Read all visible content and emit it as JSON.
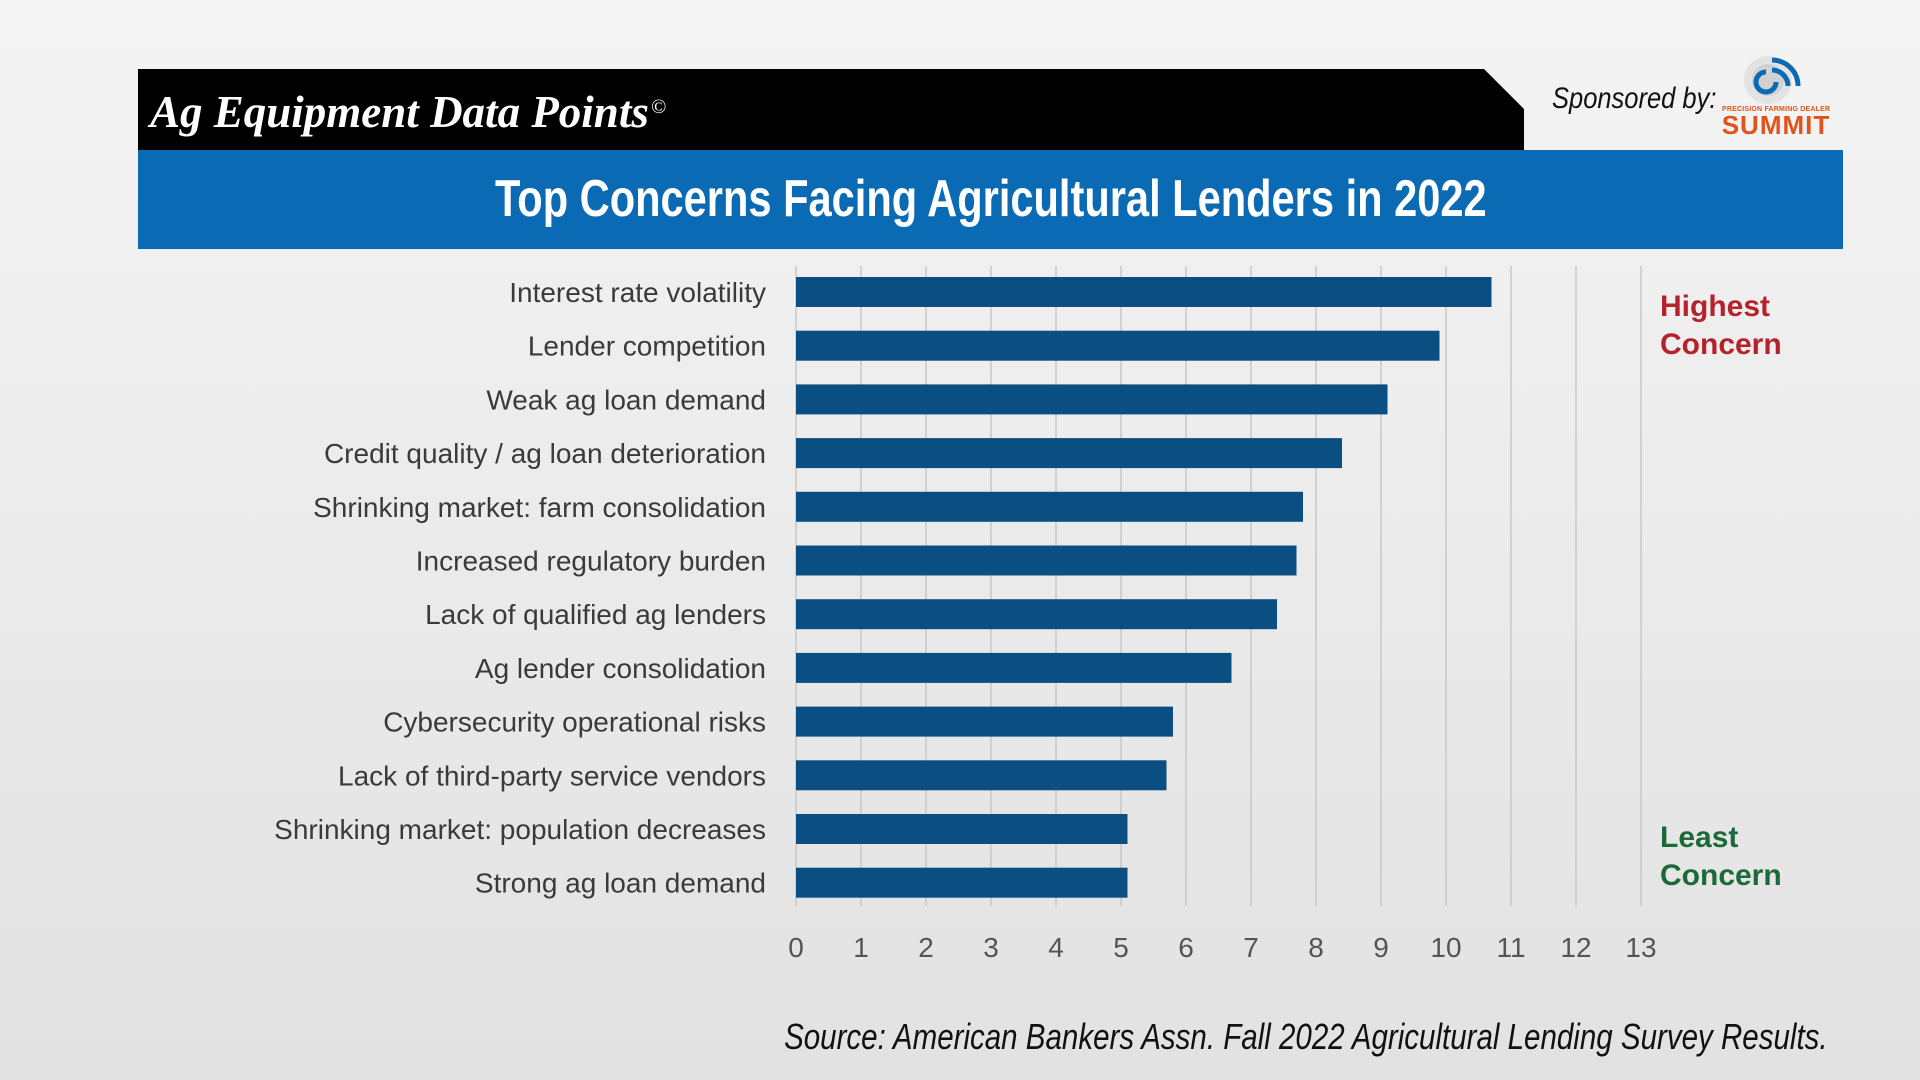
{
  "header": {
    "title": "Ag Equipment Data Points",
    "copyright_mark": "©",
    "sponsor_label": "Sponsored by:",
    "sponsor_logo_small": "PRECISION FARMING DEALER",
    "sponsor_logo_name": "SUMMIT"
  },
  "colors": {
    "header_black": "#000000",
    "title_band": "#0a6ab4",
    "bar": "#0b4f82",
    "highest_note": "#b5222b",
    "least_note": "#1a6a3a",
    "logo_orange": "#e0541b"
  },
  "annotations": {
    "highest": "Highest\nConcern",
    "least": "Least\nConcern"
  },
  "source": "Source: American Bankers Assn. Fall 2022 Agricultural Lending Survey Results.",
  "chart_data": {
    "type": "bar",
    "orientation": "horizontal",
    "title": "Top Concerns Facing Agricultural Lenders in 2022",
    "categories": [
      "Interest rate volatility",
      "Lender competition",
      "Weak ag loan demand",
      "Credit quality / ag loan deterioration",
      "Shrinking market: farm consolidation",
      "Increased regulatory burden",
      "Lack of qualified ag lenders",
      "Ag lender consolidation",
      "Cybersecurity operational risks",
      "Lack of third-party service vendors",
      "Shrinking market: population decreases",
      "Strong ag loan demand"
    ],
    "values": [
      10.7,
      9.9,
      9.1,
      8.4,
      7.8,
      7.7,
      7.4,
      6.7,
      5.8,
      5.7,
      5.1,
      5.1
    ],
    "x_ticks": [
      0,
      1,
      2,
      3,
      4,
      5,
      6,
      7,
      8,
      9,
      10,
      11,
      12,
      13
    ],
    "xlim": [
      0,
      13
    ],
    "grid": "vertical",
    "legend": "none"
  }
}
